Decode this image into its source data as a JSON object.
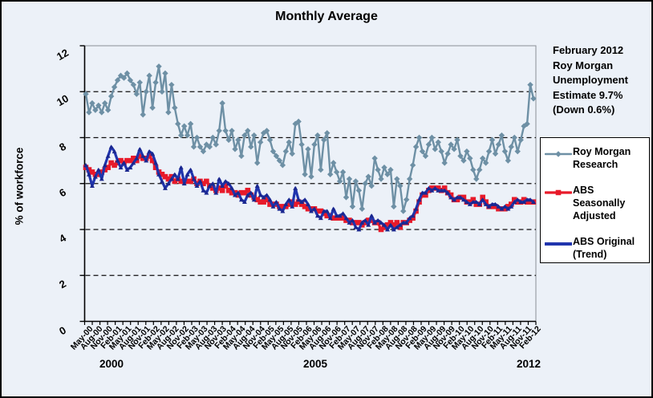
{
  "chart_data": {
    "type": "line",
    "title": "Monthly Average",
    "ylabel": "% of workforce",
    "xlabel": "",
    "ylim": [
      0,
      12
    ],
    "ytick_interval": 2,
    "grid": "horizontal-dashed",
    "legend_position": "right",
    "annotation": "February 2012\nRoy Morgan\nUnemployment\nEstimate 9.7%\n(Down 0.6%)",
    "y_tick_labels": [
      "0",
      "2",
      "4",
      "6",
      "8",
      "10",
      "12"
    ],
    "x_tick_labels": [
      "May-00",
      "Aug-00",
      "Nov-00",
      "Feb-01",
      "May-01",
      "Aug-01",
      "Nov-01",
      "Feb-02",
      "May-02",
      "Aug-02",
      "Nov-02",
      "Feb-03",
      "May-03",
      "Aug-03",
      "Nov-03",
      "Feb-04",
      "May-04",
      "Aug-04",
      "Nov-04",
      "Feb-05",
      "May-05",
      "Aug-05",
      "Nov-05",
      "Feb-06",
      "May-06",
      "Aug-06",
      "Nov-06",
      "Feb-07",
      "May-07",
      "Aug-07",
      "Nov-07",
      "Feb-08",
      "May-08",
      "Aug-08",
      "Nov-08",
      "Feb-09",
      "May-09",
      "Aug-09",
      "Nov-09",
      "Feb-10",
      "May-10",
      "Aug-10",
      "Nov-10",
      "Feb-11",
      "May-11",
      "Aug-11",
      "Nov-11",
      "Feb-12"
    ],
    "year_labels": [
      "2000",
      "2005",
      "2012"
    ],
    "x_months_total": 142,
    "series": [
      {
        "name": "Roy Morgan Research",
        "color": "#6e90a5",
        "marker": "diamond",
        "marker_color": "#6e90a5",
        "values": [
          9.9,
          9.1,
          9.5,
          9.2,
          9.4,
          9.1,
          9.5,
          9.2,
          9.8,
          10.2,
          10.5,
          10.7,
          10.6,
          10.8,
          10.5,
          10.3,
          9.9,
          10.4,
          9.0,
          10.0,
          10.7,
          9.3,
          10.4,
          11.1,
          10.0,
          10.8,
          9.1,
          10.3,
          9.3,
          8.6,
          8.1,
          8.5,
          8.1,
          8.6,
          7.6,
          8.0,
          7.6,
          7.4,
          7.7,
          7.6,
          8.0,
          7.7,
          8.3,
          9.5,
          8.3,
          7.9,
          8.3,
          7.5,
          7.9,
          7.2,
          8.1,
          8.3,
          7.6,
          8.1,
          6.9,
          7.8,
          8.2,
          8.3,
          7.9,
          7.4,
          7.2,
          7.0,
          6.8,
          7.4,
          7.8,
          7.3,
          8.6,
          8.7,
          7.7,
          6.4,
          7.5,
          6.3,
          7.7,
          8.1,
          6.6,
          7.9,
          8.2,
          6.4,
          6.9,
          6.5,
          6.1,
          6.5,
          5.4,
          6.2,
          5.0,
          6.1,
          5.7,
          4.9,
          6.0,
          6.3,
          5.9,
          7.1,
          6.6,
          6.2,
          6.7,
          6.4,
          6.6,
          5.0,
          6.2,
          5.9,
          4.8,
          5.3,
          6.2,
          6.8,
          7.6,
          8.0,
          7.4,
          7.2,
          7.7,
          8.0,
          7.5,
          7.8,
          7.4,
          6.9,
          7.3,
          7.7,
          7.5,
          7.9,
          7.2,
          7.0,
          7.4,
          7.1,
          6.6,
          6.2,
          6.6,
          7.1,
          6.9,
          7.4,
          7.9,
          7.3,
          7.7,
          8.1,
          7.4,
          7.0,
          7.6,
          8.0,
          7.4,
          7.9,
          8.5,
          8.6,
          10.3,
          9.7
        ]
      },
      {
        "name": "ABS Seasonally Adjusted",
        "color": "#e81a2a",
        "marker": "square",
        "marker_color": "#e81a2a",
        "values": [
          6.7,
          6.6,
          6.5,
          6.4,
          6.4,
          6.5,
          6.6,
          6.7,
          6.9,
          6.8,
          6.9,
          7.0,
          6.9,
          7.0,
          7.0,
          7.1,
          7.0,
          7.2,
          7.1,
          7.1,
          7.2,
          7.0,
          6.7,
          6.5,
          6.4,
          6.3,
          6.2,
          6.3,
          6.1,
          6.2,
          6.1,
          6.1,
          6.1,
          6.1,
          6.2,
          6.0,
          6.1,
          6.0,
          6.1,
          5.9,
          5.8,
          5.7,
          5.8,
          5.7,
          5.9,
          5.7,
          5.6,
          5.6,
          5.5,
          5.6,
          5.6,
          5.7,
          5.5,
          5.4,
          5.3,
          5.2,
          5.2,
          5.3,
          5.1,
          5.1,
          5.1,
          5.0,
          5.0,
          5.0,
          5.1,
          5.2,
          5.1,
          5.2,
          5.1,
          5.0,
          4.9,
          4.9,
          4.9,
          4.8,
          4.8,
          4.7,
          4.6,
          4.6,
          4.5,
          4.5,
          4.5,
          4.5,
          4.4,
          4.4,
          4.3,
          4.3,
          4.3,
          4.2,
          4.3,
          4.4,
          4.4,
          4.3,
          4.3,
          4.0,
          4.1,
          4.2,
          4.3,
          4.2,
          4.3,
          4.1,
          4.3,
          4.3,
          4.4,
          4.5,
          4.8,
          5.2,
          5.5,
          5.5,
          5.7,
          5.8,
          5.8,
          5.8,
          5.7,
          5.8,
          5.6,
          5.5,
          5.3,
          5.3,
          5.4,
          5.4,
          5.2,
          5.2,
          5.3,
          5.1,
          5.1,
          5.4,
          5.2,
          5.0,
          5.0,
          5.0,
          4.9,
          4.9,
          4.9,
          5.0,
          5.1,
          5.3,
          5.2,
          5.2,
          5.3,
          5.2,
          5.2,
          5.2
        ]
      },
      {
        "name": "ABS Original (Trend)",
        "color": "#2034ad",
        "marker": "triangle",
        "marker_color": "#1a278f",
        "values": [
          6.8,
          6.4,
          5.9,
          6.3,
          6.6,
          6.2,
          6.8,
          7.2,
          7.6,
          7.4,
          7.0,
          6.7,
          6.9,
          6.6,
          6.7,
          6.9,
          7.1,
          7.5,
          7.2,
          7.0,
          7.4,
          7.3,
          6.9,
          6.4,
          6.1,
          5.8,
          6.0,
          6.2,
          6.4,
          6.2,
          6.7,
          6.0,
          6.4,
          6.6,
          6.2,
          5.9,
          6.1,
          5.7,
          5.6,
          5.9,
          6.0,
          5.6,
          6.2,
          5.9,
          6.1,
          6.0,
          5.8,
          5.5,
          5.6,
          5.3,
          5.2,
          5.5,
          5.6,
          5.3,
          5.9,
          5.5,
          5.4,
          5.5,
          5.3,
          5.0,
          5.2,
          4.9,
          4.8,
          5.1,
          5.3,
          5.0,
          5.8,
          5.3,
          5.2,
          5.3,
          5.1,
          4.8,
          4.9,
          4.6,
          4.5,
          4.8,
          4.8,
          4.5,
          4.9,
          4.6,
          4.6,
          4.7,
          4.5,
          4.3,
          4.4,
          4.1,
          4.0,
          4.3,
          4.4,
          4.2,
          4.6,
          4.3,
          4.4,
          4.3,
          4.2,
          4.0,
          4.2,
          4.0,
          4.1,
          4.2,
          4.3,
          4.3,
          4.5,
          4.6,
          4.9,
          5.3,
          5.6,
          5.6,
          5.8,
          5.7,
          5.8,
          5.7,
          5.7,
          5.7,
          5.6,
          5.4,
          5.3,
          5.4,
          5.4,
          5.3,
          5.2,
          5.1,
          5.2,
          5.2,
          5.1,
          5.3,
          5.1,
          5.0,
          5.1,
          5.1,
          5.0,
          4.9,
          5.0,
          4.9,
          5.0,
          5.2,
          5.3,
          5.2,
          5.2,
          5.3,
          5.3,
          5.2
        ]
      }
    ]
  }
}
